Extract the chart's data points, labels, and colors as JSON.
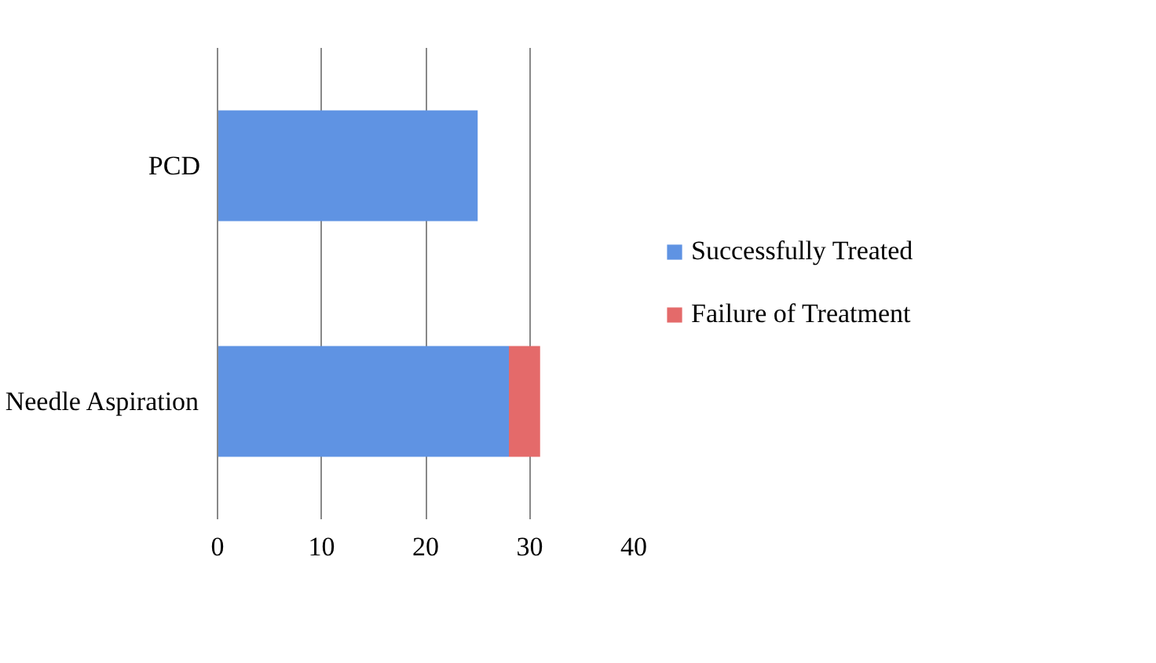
{
  "chart_data": {
    "type": "bar",
    "orientation": "horizontal",
    "stacked": true,
    "categories": [
      "PCD",
      "Needle Aspiration"
    ],
    "series": [
      {
        "name": "Successfully Treated",
        "color": "#5f93e3",
        "values": [
          25,
          28
        ]
      },
      {
        "name": "Failure of Treatment",
        "color": "#e46a6a",
        "values": [
          0,
          3
        ]
      }
    ],
    "xlim": [
      0,
      40
    ],
    "xticks": [
      0,
      10,
      20,
      30,
      40
    ],
    "grid": "x",
    "legend": "right"
  }
}
